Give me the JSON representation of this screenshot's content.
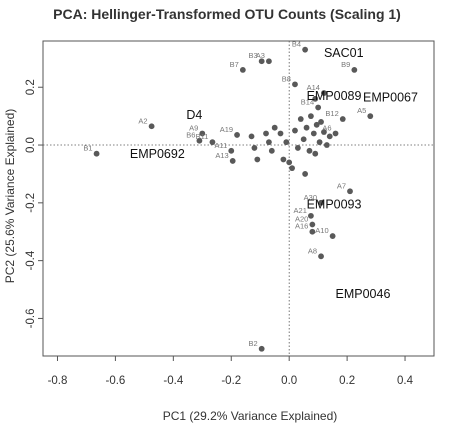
{
  "chart_data": {
    "type": "scatter",
    "title": "PCA: Hellinger-Transformed OTU Counts (Scaling 1)",
    "xlabel": "PC1 (29.2% Variance Explained)",
    "ylabel": "PC2 (25.6% Variance Explained)",
    "xlim": [
      -0.85,
      0.5
    ],
    "ylim": [
      -0.73,
      0.36
    ],
    "xticks": [
      -0.8,
      -0.6,
      -0.4,
      -0.2,
      0.0,
      0.2,
      0.4
    ],
    "yticks": [
      -0.6,
      -0.4,
      -0.2,
      0.0,
      0.2
    ],
    "xtick_labels": [
      "-0.8",
      "-0.6",
      "-0.4",
      "-0.2",
      "0.0",
      "0.2",
      "0.4"
    ],
    "ytick_labels": [
      "-0.6",
      "-0.4",
      "-0.2",
      "0.0",
      "0.2"
    ],
    "reference_lines": {
      "x": 0,
      "y": 0,
      "style": "dotted"
    },
    "point_color": "#595959",
    "points": [
      {
        "x": -0.665,
        "y": -0.03,
        "label": "B1"
      },
      {
        "x": -0.475,
        "y": 0.065,
        "label": "A2"
      },
      {
        "x": -0.095,
        "y": 0.29,
        "label": "B3"
      },
      {
        "x": -0.07,
        "y": 0.29,
        "label": "A3"
      },
      {
        "x": 0.055,
        "y": 0.33,
        "label": "B4"
      },
      {
        "x": 0.28,
        "y": 0.1,
        "label": "A5"
      },
      {
        "x": 0.185,
        "y": 0.09,
        "label": "B12"
      },
      {
        "x": 0.16,
        "y": 0.04,
        "label": "A6"
      },
      {
        "x": 0.225,
        "y": 0.26,
        "label": "B9"
      },
      {
        "x": -0.16,
        "y": 0.26,
        "label": "B7"
      },
      {
        "x": 0.02,
        "y": 0.21,
        "label": "B8"
      },
      {
        "x": 0.12,
        "y": 0.18,
        "label": "A14"
      },
      {
        "x": 0.1,
        "y": 0.13,
        "label": "B14"
      },
      {
        "x": -0.18,
        "y": 0.035,
        "label": "A19"
      },
      {
        "x": -0.3,
        "y": 0.04,
        "label": "A9"
      },
      {
        "x": -0.265,
        "y": 0.01,
        "label": "B11"
      },
      {
        "x": -0.2,
        "y": -0.02,
        "label": "A11"
      },
      {
        "x": -0.195,
        "y": -0.055,
        "label": "A13"
      },
      {
        "x": -0.31,
        "y": 0.015,
        "label": "B6"
      },
      {
        "x": 0.21,
        "y": -0.16,
        "label": "A7"
      },
      {
        "x": 0.11,
        "y": -0.2,
        "label": "A30"
      },
      {
        "x": 0.075,
        "y": -0.245,
        "label": "A21"
      },
      {
        "x": 0.08,
        "y": -0.275,
        "label": "A20"
      },
      {
        "x": 0.08,
        "y": -0.3,
        "label": "A16"
      },
      {
        "x": 0.15,
        "y": -0.315,
        "label": "A10"
      },
      {
        "x": 0.11,
        "y": -0.385,
        "label": "A8"
      },
      {
        "x": -0.095,
        "y": -0.705,
        "label": "B2"
      },
      {
        "x": -0.13,
        "y": 0.03,
        "label": ""
      },
      {
        "x": -0.12,
        "y": -0.01,
        "label": ""
      },
      {
        "x": -0.11,
        "y": -0.05,
        "label": ""
      },
      {
        "x": -0.08,
        "y": 0.04,
        "label": ""
      },
      {
        "x": -0.07,
        "y": 0.01,
        "label": ""
      },
      {
        "x": -0.06,
        "y": -0.02,
        "label": ""
      },
      {
        "x": -0.05,
        "y": 0.06,
        "label": ""
      },
      {
        "x": -0.03,
        "y": 0.04,
        "label": ""
      },
      {
        "x": -0.02,
        "y": -0.05,
        "label": ""
      },
      {
        "x": -0.01,
        "y": 0.01,
        "label": ""
      },
      {
        "x": 0.0,
        "y": -0.06,
        "label": ""
      },
      {
        "x": 0.01,
        "y": -0.08,
        "label": ""
      },
      {
        "x": 0.02,
        "y": 0.05,
        "label": ""
      },
      {
        "x": 0.03,
        "y": -0.01,
        "label": ""
      },
      {
        "x": 0.04,
        "y": 0.09,
        "label": ""
      },
      {
        "x": 0.05,
        "y": 0.02,
        "label": ""
      },
      {
        "x": 0.055,
        "y": -0.1,
        "label": ""
      },
      {
        "x": 0.06,
        "y": 0.06,
        "label": ""
      },
      {
        "x": 0.07,
        "y": -0.02,
        "label": ""
      },
      {
        "x": 0.075,
        "y": 0.1,
        "label": ""
      },
      {
        "x": 0.085,
        "y": 0.04,
        "label": ""
      },
      {
        "x": 0.09,
        "y": -0.03,
        "label": ""
      },
      {
        "x": 0.095,
        "y": 0.07,
        "label": ""
      },
      {
        "x": 0.105,
        "y": 0.01,
        "label": ""
      },
      {
        "x": 0.11,
        "y": 0.08,
        "label": ""
      },
      {
        "x": 0.12,
        "y": 0.045,
        "label": ""
      },
      {
        "x": 0.13,
        "y": 0.0,
        "label": ""
      },
      {
        "x": 0.14,
        "y": 0.03,
        "label": ""
      },
      {
        "x": 0.09,
        "y": 0.16,
        "label": ""
      }
    ],
    "annotations": [
      {
        "text": "SAC01",
        "x": 0.12,
        "y": 0.305
      },
      {
        "text": "D4",
        "x": -0.355,
        "y": 0.09
      },
      {
        "text": "EMP0692",
        "x": -0.55,
        "y": -0.045
      },
      {
        "text": "EMP0089",
        "x": 0.06,
        "y": 0.155
      },
      {
        "text": "EMP0067",
        "x": 0.255,
        "y": 0.15
      },
      {
        "text": "EMP0093",
        "x": 0.06,
        "y": -0.22
      },
      {
        "text": "EMP0046",
        "x": 0.16,
        "y": -0.53
      }
    ]
  }
}
